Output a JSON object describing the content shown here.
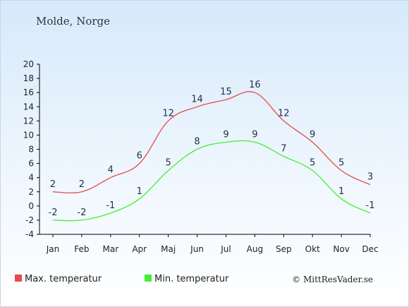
{
  "location": "Molde, Norge",
  "copyright": "© MittResVader.se",
  "colors": {
    "max": "#e84b4b",
    "min": "#44ee33"
  },
  "chart_data": {
    "type": "line",
    "categories": [
      "Jan",
      "Feb",
      "Mar",
      "Apr",
      "Maj",
      "Jun",
      "Jul",
      "Aug",
      "Sep",
      "Okt",
      "Nov",
      "Dec"
    ],
    "ylim": [
      -4,
      20
    ],
    "yticks": [
      -4,
      -2,
      0,
      2,
      4,
      6,
      8,
      10,
      12,
      14,
      16,
      18,
      20
    ],
    "legend_position": "bottom",
    "series": [
      {
        "name": "Max. temperatur",
        "values": [
          2,
          2,
          4,
          6,
          12,
          14,
          15,
          16,
          12,
          9,
          5,
          3
        ]
      },
      {
        "name": "Min. temperatur",
        "values": [
          -2,
          -2,
          -1,
          1,
          5,
          8,
          9,
          9,
          7,
          5,
          1,
          -1
        ]
      }
    ]
  }
}
